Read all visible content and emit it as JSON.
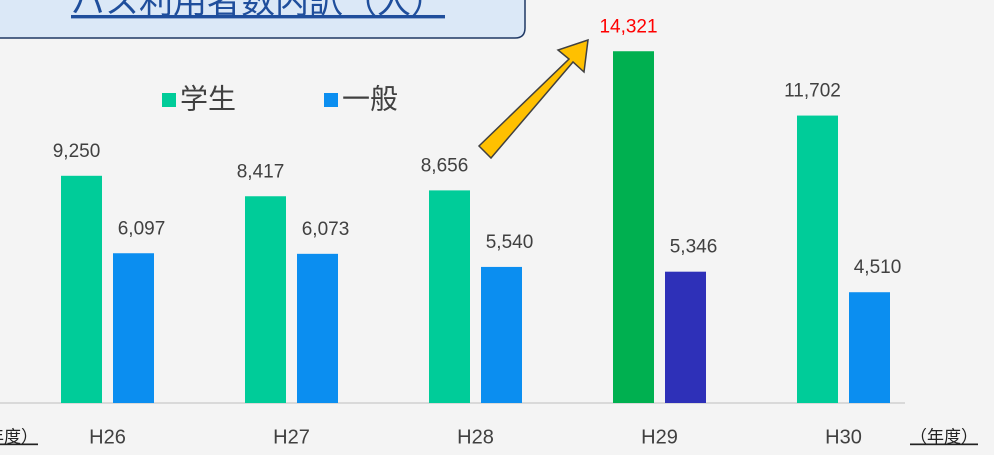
{
  "chart_data": {
    "type": "bar",
    "title": "バス利用者数内訳（人）",
    "x_label": "（年度）",
    "categories": [
      "H26",
      "H27",
      "H28",
      "H29",
      "H30"
    ],
    "series": [
      {
        "name": "学生",
        "color": "#00cc99",
        "highlight_color": "#00b050",
        "values": [
          9250,
          8417,
          8656,
          14321,
          11702
        ],
        "value_labels": [
          "9,250",
          "8,417",
          "8,656",
          "14,321",
          "11,702"
        ]
      },
      {
        "name": "一般",
        "color": "#0b8ef0",
        "highlight_color": "#2e30b8",
        "values": [
          6097,
          6073,
          5540,
          5346,
          4510
        ],
        "value_labels": [
          "6,097",
          "6,073",
          "5,540",
          "5,346",
          "4,510"
        ]
      }
    ],
    "highlight_index": 3,
    "highlight_label_color": "#ff0000",
    "ylim": [
      0,
      16000
    ]
  }
}
